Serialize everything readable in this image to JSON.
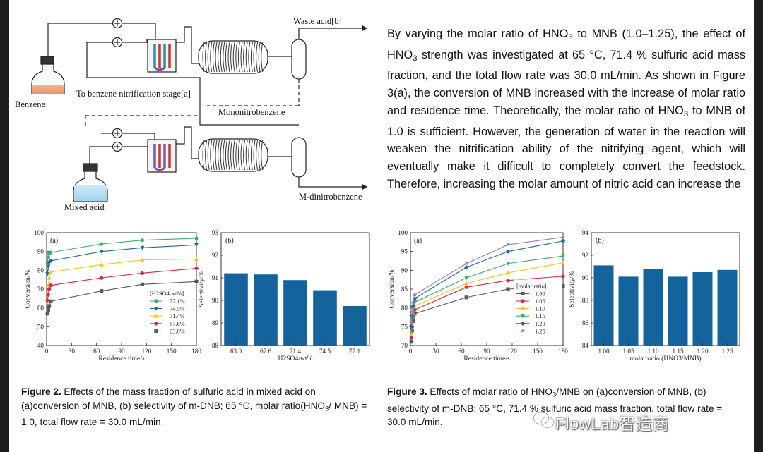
{
  "scheme": {
    "benzene": "Benzene",
    "mixed_acid": "Mixed acid",
    "to_benzene_stage": "To benzene nitrification stage[a]",
    "waste_acid": "Waste acid[b]",
    "mononitrobenzene": "Mononitrobenzene",
    "m_dinitrobenzene": "M-dinitrobenzene"
  },
  "body_text": [
    "By varying the molar ratio of HNO",
    "3",
    " to MNB (1.0–1.25), the effect of HNO",
    "3",
    " strength was investigated at 65 °C, 71.4 % sulfuric acid mass fraction, and the total flow rate was 30.0 mL/min. As shown in Figure 3(a), the conversion of MNB increased with the increase of molar ratio and residence time. Theoretically, the molar ratio of HNO",
    "3",
    " to MNB of 1.0 is sufficient. However, the generation of water in the reaction will weaken the nitrification ability of the nitrifying agent, which will eventually make it difficult to completely convert the feedstock. Therefore, increasing the molar amount of nitric acid can increase the"
  ],
  "caption2": {
    "label": "Figure 2.",
    "t1": " Effects of the mass fraction of sulfuric acid in mixed acid on (a)conversion of MNB, (b) selectivity of m-DNB; 65 °C, molar ratio(HNO",
    "sub": "3",
    "t2": "/ MNB) = 1.0, total flow rate = 30.0 mL/min."
  },
  "caption3": {
    "label": "Figure 3.",
    "t1": " Effects of molar ratio of HNO",
    "sub": "3",
    "t2": "/MNB on (a)conversion of MNB, (b) selectivity of m-DNB; 65 °C, 71.4 % sulfuric acid mass fraction, total flow rate = 30.0 mL/min."
  },
  "watermark": "FlowLab智造商",
  "colors": {
    "green": "#3ea96b",
    "teal": "#1d6a8f",
    "yellow": "#f2c521",
    "red": "#d7263d",
    "gray": "#595959",
    "purple": "#8a7fc7",
    "blue_bar": "#14639c"
  },
  "chart_data": [
    {
      "type": "line",
      "panel": "(a)",
      "xlabel": "Residence time/s",
      "ylabel": "Conversion/%",
      "xlim": [
        0,
        180
      ],
      "ylim": [
        40,
        100
      ],
      "xticks": [
        0,
        30,
        60,
        90,
        120,
        150,
        180
      ],
      "yticks": [
        40,
        50,
        60,
        70,
        80,
        90,
        100
      ],
      "legend_title": "[H2SO4 wt%]",
      "x": [
        1,
        2,
        3,
        5,
        66,
        115,
        180
      ],
      "series": [
        {
          "name": "77.1%",
          "values": [
            84,
            87,
            89,
            89.5,
            94,
            96,
            97
          ]
        },
        {
          "name": "74.5%",
          "values": [
            78,
            82,
            84,
            85,
            90,
            92,
            93.5
          ]
        },
        {
          "name": "71.4%",
          "values": [
            68,
            72,
            76,
            79,
            83,
            85.5,
            86
          ]
        },
        {
          "name": "67.6%",
          "values": [
            64,
            67,
            70,
            72,
            76,
            78.5,
            81
          ]
        },
        {
          "name": "63.0%",
          "values": [
            57,
            59,
            61,
            63.5,
            69,
            72.5,
            74
          ]
        }
      ]
    },
    {
      "type": "bar",
      "panel": "(b)",
      "xlabel": "H2SO4/wt%",
      "ylabel": "Selectivity/%",
      "ylim": [
        88,
        93
      ],
      "yticks": [
        88,
        89,
        90,
        91,
        92,
        93
      ],
      "categories": [
        "63.0",
        "67.6",
        "71.4",
        "74.5",
        "77.1"
      ],
      "values": [
        91.2,
        91.15,
        90.9,
        90.45,
        89.75
      ]
    },
    {
      "type": "line",
      "panel": "(a)",
      "xlabel": "Residence time/s",
      "ylabel": "Conversion/%",
      "xlim": [
        0,
        180
      ],
      "ylim": [
        70,
        100
      ],
      "xticks": [
        0,
        30,
        60,
        90,
        120,
        150,
        180
      ],
      "yticks": [
        70,
        75,
        80,
        85,
        90,
        95,
        100
      ],
      "legend_title": "[molar ratio]",
      "x": [
        1,
        2,
        3,
        5,
        66,
        115,
        180
      ],
      "series": [
        {
          "name": "1.00",
          "values": [
            71,
            74,
            76.5,
            78.5,
            82.8,
            85,
            85.8
          ]
        },
        {
          "name": "1.05",
          "values": [
            72,
            75,
            77.5,
            79.5,
            85.5,
            87.3,
            88.4
          ]
        },
        {
          "name": "1.10",
          "values": [
            73,
            76,
            78.5,
            80.5,
            86.5,
            89.3,
            92
          ]
        },
        {
          "name": "1.15",
          "values": [
            74,
            77,
            79.5,
            81.5,
            88,
            91.8,
            93.8
          ]
        },
        {
          "name": "1.20",
          "values": [
            75,
            78,
            80.5,
            82.5,
            90.8,
            95,
            97.8
          ]
        },
        {
          "name": "1.25",
          "values": [
            76,
            79,
            81.5,
            83.5,
            91.8,
            96.8,
            98.8
          ]
        }
      ]
    },
    {
      "type": "bar",
      "panel": "(b)",
      "xlabel": "molar ratio (HNO3/MNB)",
      "ylabel": "Selectivity/%",
      "ylim": [
        84,
        94
      ],
      "yticks": [
        84,
        86,
        88,
        90,
        92,
        94
      ],
      "categories": [
        "1.00",
        "1.05",
        "1.10",
        "1.15",
        "1.20",
        "1.25"
      ],
      "values": [
        91.1,
        90.1,
        90.8,
        90.1,
        90.5,
        90.7
      ]
    }
  ]
}
